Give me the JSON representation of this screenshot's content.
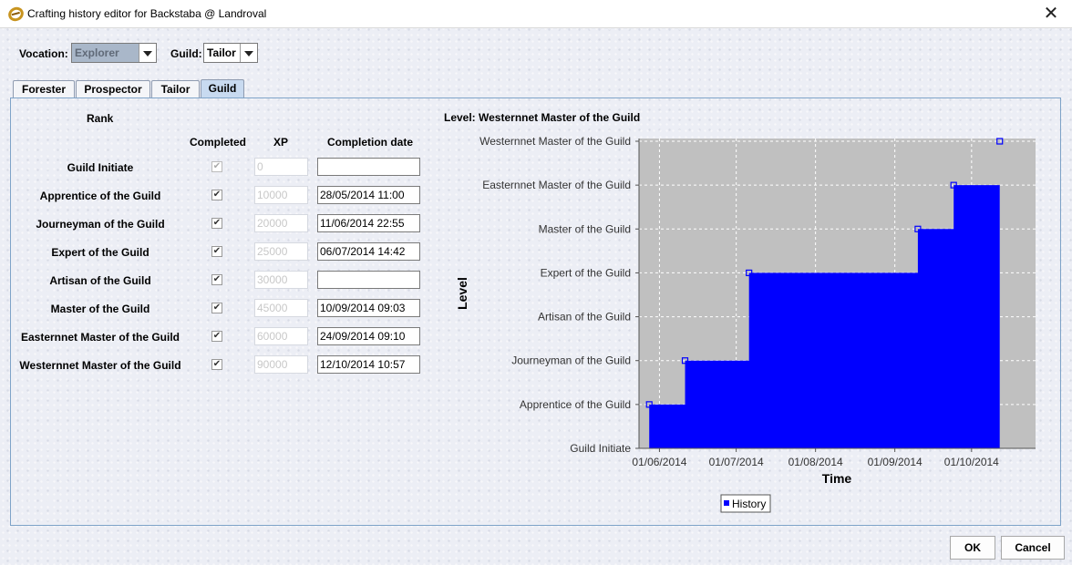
{
  "window": {
    "title": "Crafting history editor for Backstaba @ Landroval"
  },
  "selectors": {
    "vocation_label": "Vocation:",
    "vocation_value": "Explorer",
    "guild_label": "Guild:",
    "guild_value": "Tailor"
  },
  "tabs": [
    {
      "label": "Forester",
      "active": false
    },
    {
      "label": "Prospector",
      "active": false
    },
    {
      "label": "Tailor",
      "active": false
    },
    {
      "label": "Guild",
      "active": true
    }
  ],
  "table": {
    "rank_header": "Rank",
    "completed_header": "Completed",
    "xp_header": "XP",
    "date_header": "Completion date",
    "rows": [
      {
        "rank": "Guild Initiate",
        "completed": true,
        "xp": "0",
        "date": ""
      },
      {
        "rank": "Apprentice of the Guild",
        "completed": true,
        "xp": "10000",
        "date": "28/05/2014 11:00"
      },
      {
        "rank": "Journeyman of the Guild",
        "completed": true,
        "xp": "20000",
        "date": "11/06/2014 22:55"
      },
      {
        "rank": "Expert of the Guild",
        "completed": true,
        "xp": "25000",
        "date": "06/07/2014 14:42"
      },
      {
        "rank": "Artisan of the Guild",
        "completed": true,
        "xp": "30000",
        "date": ""
      },
      {
        "rank": "Master of the Guild",
        "completed": true,
        "xp": "45000",
        "date": "10/09/2014 09:03"
      },
      {
        "rank": "Easternnet Master of the Guild",
        "completed": true,
        "xp": "60000",
        "date": "24/09/2014 09:10"
      },
      {
        "rank": "Westernnet Master of the Guild",
        "completed": true,
        "xp": "90000",
        "date": "12/10/2014 10:57"
      }
    ]
  },
  "chart_data": {
    "type": "line",
    "title": "Level: Westernnet Master of the Guild",
    "xlabel": "Time",
    "ylabel": "Level",
    "y_categories": [
      "Guild Initiate",
      "Apprentice of the Guild",
      "Journeyman of the Guild",
      "Artisan of the Guild",
      "Expert of the Guild",
      "Master of the Guild",
      "Easternnet Master of the Guild",
      "Westernnet Master of the Guild"
    ],
    "x_ticks": [
      "01/06/2014",
      "01/07/2014",
      "01/08/2014",
      "01/09/2014",
      "01/10/2014"
    ],
    "xlim": [
      "2014-05-24",
      "2014-10-26"
    ],
    "grid": true,
    "legend": "bottom",
    "series": [
      {
        "name": "History",
        "color": "#0000ff",
        "points": [
          {
            "x": "2014-05-28",
            "y": "Apprentice of the Guild"
          },
          {
            "x": "2014-06-11",
            "y": "Journeyman of the Guild"
          },
          {
            "x": "2014-07-06",
            "y": "Expert of the Guild"
          },
          {
            "x": "2014-09-10",
            "y": "Master of the Guild"
          },
          {
            "x": "2014-09-24",
            "y": "Easternnet Master of the Guild"
          },
          {
            "x": "2014-10-12",
            "y": "Westernnet Master of the Guild"
          }
        ]
      }
    ]
  },
  "buttons": {
    "ok": "OK",
    "cancel": "Cancel"
  }
}
